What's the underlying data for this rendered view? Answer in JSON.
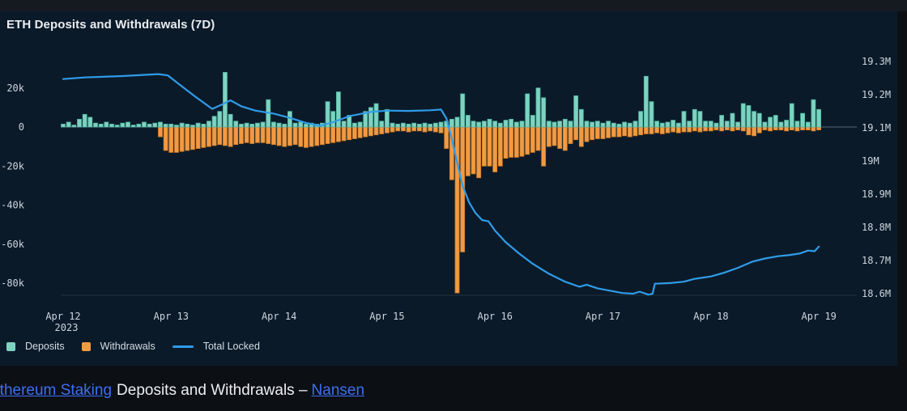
{
  "page": {
    "caption": {
      "link1": "Ethereum Staking",
      "middle": "Deposits and Withdrawals –",
      "link2": "Nansen"
    }
  },
  "chart": {
    "title": "ETH Deposits and Withdrawals (7D)",
    "legend": [
      {
        "label": "Deposits",
        "color": "#7ed3c0",
        "kind": "square"
      },
      {
        "label": "Withdrawals",
        "color": "#f19a45",
        "kind": "square"
      },
      {
        "label": "Total Locked",
        "color": "#2f9ce8",
        "kind": "line"
      }
    ]
  },
  "chart_data": {
    "type": "combo_bar_line",
    "title": "ETH Deposits and Withdrawals (7D)",
    "colors": {
      "deposits_fill": "#7ed3c0",
      "deposits_stroke": "#4fb5a0",
      "withdrawals_fill": "#f19a45",
      "withdrawals_stroke": "#cd7c26",
      "total_locked_line": "#2f9ce8",
      "zero_line": "#9aa7b0",
      "axis_text": "#ccd6dd",
      "panel_bg": "#0b1a29"
    },
    "left_axis": {
      "unit_suffix": "k",
      "ticks": [
        {
          "label": "20k",
          "value": 20
        },
        {
          "label": "0",
          "value": 0
        },
        {
          "label": "-20k",
          "value": -20
        },
        {
          "label": "-40k",
          "value": -40
        },
        {
          "label": "-60k",
          "value": -60
        },
        {
          "label": "-80k",
          "value": -80
        }
      ],
      "range_k": [
        -88,
        30
      ]
    },
    "right_axis": {
      "unit_suffix": "M",
      "ticks": [
        {
          "label": "19.3M",
          "value": 19.3
        },
        {
          "label": "19.2M",
          "value": 19.2
        },
        {
          "label": "19.1M",
          "value": 19.1
        },
        {
          "label": "19M",
          "value": 19.0
        },
        {
          "label": "18.9M",
          "value": 18.9
        },
        {
          "label": "18.8M",
          "value": 18.8
        },
        {
          "label": "18.7M",
          "value": 18.7
        },
        {
          "label": "18.6M",
          "value": 18.6
        }
      ],
      "range_m": [
        18.55,
        19.35
      ]
    },
    "x_ticks": [
      {
        "label": "Apr 12",
        "sub": "2023",
        "day": 0
      },
      {
        "label": "Apr 13",
        "day": 1
      },
      {
        "label": "Apr 14",
        "day": 2
      },
      {
        "label": "Apr 15",
        "day": 3
      },
      {
        "label": "Apr 16",
        "day": 4
      },
      {
        "label": "Apr 17",
        "day": 5
      },
      {
        "label": "Apr 18",
        "day": 6
      },
      {
        "label": "Apr 19",
        "day": 7
      }
    ],
    "bars": {
      "per_day": 20,
      "deposits_k": [
        1.5,
        2.5,
        1,
        4,
        6.5,
        5,
        2,
        1.5,
        2.5,
        1.5,
        1,
        2,
        2.5,
        1,
        1.5,
        2.5,
        1.5,
        2,
        2.5,
        1.5,
        1.5,
        1,
        2,
        1.5,
        1,
        2,
        1.5,
        3,
        5.5,
        8,
        28,
        6.5,
        3,
        1.5,
        2,
        1.5,
        2,
        2.5,
        14,
        2.5,
        2,
        1.5,
        8,
        2,
        2.5,
        1.5,
        2,
        1.5,
        2,
        13,
        8,
        18,
        3,
        6,
        2,
        2.5,
        8,
        10,
        12,
        3,
        9,
        2,
        1.5,
        2,
        1.5,
        2,
        1.5,
        2,
        1.5,
        2,
        2.5,
        3,
        4,
        5,
        17,
        6,
        3,
        2.5,
        3,
        4,
        3,
        2,
        3.5,
        4,
        2.5,
        3,
        17,
        6,
        20,
        15,
        3,
        2.5,
        3,
        4,
        3,
        16,
        9,
        3,
        2.5,
        3,
        2,
        3,
        2,
        1.5,
        2.5,
        2,
        3,
        8,
        26,
        13,
        3,
        2,
        2.5,
        3.5,
        2,
        8,
        3,
        9,
        8,
        3,
        3,
        2,
        6,
        3,
        7,
        2.5,
        12,
        11,
        8,
        7,
        2.5,
        5,
        6,
        2.5,
        3.5,
        12,
        3,
        7,
        2.5,
        14,
        9
      ],
      "withdrawals_k": [
        0,
        0,
        0,
        0,
        0,
        0,
        0,
        0,
        0,
        0,
        0,
        0,
        0,
        0,
        0,
        0,
        0,
        0,
        -5,
        -12,
        -13,
        -13,
        -12.5,
        -12,
        -11.5,
        -11,
        -10.5,
        -10,
        -9.5,
        -9,
        -9.5,
        -10,
        -9,
        -8.5,
        -8,
        -8.5,
        -8,
        -8,
        -8.5,
        -9,
        -9.5,
        -10,
        -9.5,
        -9,
        -10,
        -10.5,
        -10,
        -9.5,
        -9,
        -8.5,
        -8,
        -7.5,
        -7,
        -6.5,
        -6,
        -5.5,
        -5,
        -4.5,
        -4,
        -3.5,
        -3,
        -2.5,
        -2,
        -2,
        -2.5,
        -2,
        -2,
        -2.5,
        -2,
        -2.5,
        -3,
        -11,
        -27,
        -85,
        -64,
        -25,
        -24,
        -26,
        -20,
        -20,
        -23,
        -20,
        -16,
        -15.5,
        -15.5,
        -15,
        -14,
        -13,
        -12,
        -20,
        -10,
        -9.5,
        -11,
        -12,
        -8.5,
        -6.5,
        -10,
        -7.5,
        -6.5,
        -6,
        -6,
        -5.5,
        -5,
        -5,
        -4.5,
        -5,
        -4.5,
        -4,
        -3.5,
        -3.5,
        -3,
        -3.5,
        -3,
        -2.5,
        -3,
        -2.5,
        -2.5,
        -2,
        -2.5,
        -2,
        -2,
        -1.5,
        -2,
        -1.5,
        -2,
        -1.5,
        -2,
        -4,
        -4.5,
        -3,
        -1.5,
        -2,
        -1.5,
        -1.5,
        -2,
        -1.5,
        -2,
        -1.5,
        -1.5,
        -2,
        -1.5
      ]
    },
    "total_locked_m": [
      [
        0,
        19.247
      ],
      [
        0.2,
        19.252
      ],
      [
        0.55,
        19.256
      ],
      [
        0.88,
        19.262
      ],
      [
        0.97,
        19.258
      ],
      [
        1.08,
        19.23
      ],
      [
        1.22,
        19.195
      ],
      [
        1.38,
        19.157
      ],
      [
        1.47,
        19.17
      ],
      [
        1.55,
        19.183
      ],
      [
        1.65,
        19.165
      ],
      [
        1.78,
        19.152
      ],
      [
        1.95,
        19.143
      ],
      [
        2.1,
        19.13
      ],
      [
        2.25,
        19.115
      ],
      [
        2.38,
        19.106
      ],
      [
        2.5,
        19.117
      ],
      [
        2.65,
        19.135
      ],
      [
        2.85,
        19.148
      ],
      [
        3.0,
        19.152
      ],
      [
        3.2,
        19.151
      ],
      [
        3.4,
        19.153
      ],
      [
        3.5,
        19.155
      ],
      [
        3.55,
        19.128
      ],
      [
        3.6,
        19.065
      ],
      [
        3.65,
        18.995
      ],
      [
        3.7,
        18.925
      ],
      [
        3.76,
        18.875
      ],
      [
        3.82,
        18.843
      ],
      [
        3.88,
        18.822
      ],
      [
        3.94,
        18.818
      ],
      [
        4.0,
        18.79
      ],
      [
        4.1,
        18.755
      ],
      [
        4.22,
        18.722
      ],
      [
        4.35,
        18.69
      ],
      [
        4.5,
        18.66
      ],
      [
        4.65,
        18.636
      ],
      [
        4.78,
        18.621
      ],
      [
        4.85,
        18.627
      ],
      [
        4.95,
        18.616
      ],
      [
        5.05,
        18.61
      ],
      [
        5.18,
        18.602
      ],
      [
        5.28,
        18.6
      ],
      [
        5.34,
        18.606
      ],
      [
        5.42,
        18.597
      ],
      [
        5.46,
        18.6
      ],
      [
        5.48,
        18.63
      ],
      [
        5.62,
        18.632
      ],
      [
        5.75,
        18.636
      ],
      [
        5.85,
        18.645
      ],
      [
        6.0,
        18.652
      ],
      [
        6.12,
        18.663
      ],
      [
        6.25,
        18.678
      ],
      [
        6.38,
        18.696
      ],
      [
        6.5,
        18.706
      ],
      [
        6.62,
        18.713
      ],
      [
        6.72,
        18.716
      ],
      [
        6.82,
        18.721
      ],
      [
        6.9,
        18.73
      ],
      [
        6.96,
        18.728
      ],
      [
        7.0,
        18.742
      ]
    ]
  }
}
